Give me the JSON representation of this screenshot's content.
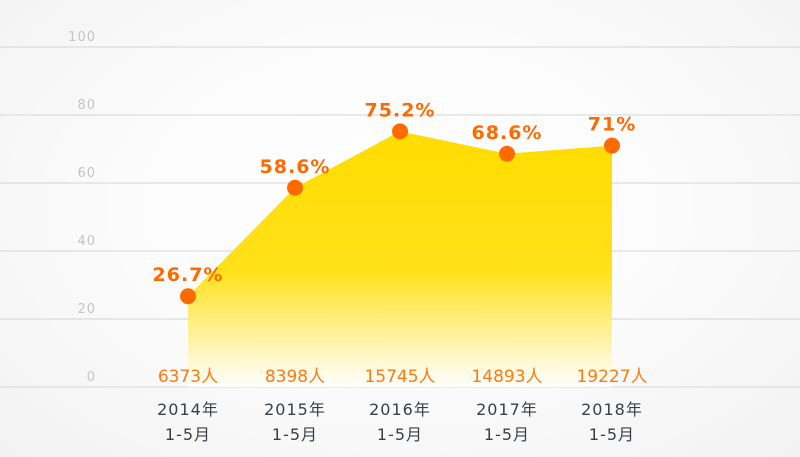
{
  "chart_data": {
    "type": "area",
    "categories": [
      {
        "year": "2014年",
        "period": "1-5月"
      },
      {
        "year": "2015年",
        "period": "1-5月"
      },
      {
        "year": "2016年",
        "period": "1-5月"
      },
      {
        "year": "2017年",
        "period": "1-5月"
      },
      {
        "year": "2018年",
        "period": "1-5月"
      }
    ],
    "values": [
      26.7,
      58.6,
      75.2,
      68.6,
      71
    ],
    "value_labels": [
      "26.7%",
      "58.6%",
      "75.2%",
      "68.6%",
      "71%"
    ],
    "counts": [
      "6373人",
      "8398人",
      "15745人",
      "14893人",
      "19227人"
    ],
    "yticks": [
      "0",
      "20",
      "40",
      "60",
      "80",
      "100"
    ],
    "ylim": [
      0,
      100
    ],
    "grid": true,
    "colors": {
      "area": "#ffdc00",
      "marker": "#ff6a00",
      "label": "#ff6a00"
    }
  }
}
